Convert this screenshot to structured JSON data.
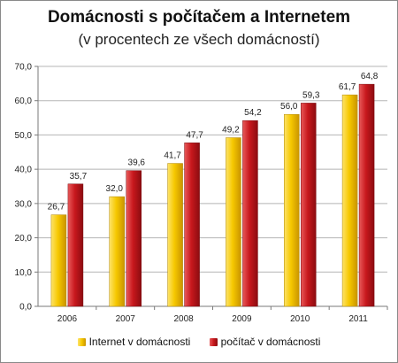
{
  "chart_data": {
    "type": "bar",
    "title": "Domácnosti s počítačem a Internetem",
    "subtitle": "(v procentech ze všech domácností)",
    "categories": [
      "2006",
      "2007",
      "2008",
      "2009",
      "2010",
      "2011"
    ],
    "series": [
      {
        "name": "Internet v domácnosti",
        "values": [
          26.7,
          32.0,
          41.7,
          49.2,
          56.0,
          61.7
        ],
        "labels": [
          "26,7",
          "32,0",
          "41,7",
          "49,2",
          "56,0",
          "61,7"
        ],
        "color": "#f2c200"
      },
      {
        "name": "počítač v domácnosti",
        "values": [
          35.7,
          39.6,
          47.7,
          54.2,
          59.3,
          64.8
        ],
        "labels": [
          "35,7",
          "39,6",
          "47,7",
          "54,2",
          "59,3",
          "64,8"
        ],
        "color": "#c4161c"
      }
    ],
    "ylim": [
      0,
      70
    ],
    "yticks": [
      0,
      10,
      20,
      30,
      40,
      50,
      60,
      70
    ],
    "ytick_labels": [
      "0,0",
      "10,0",
      "20,0",
      "30,0",
      "40,0",
      "50,0",
      "60,0",
      "70,0"
    ],
    "grid": true,
    "legend": "bottom"
  }
}
